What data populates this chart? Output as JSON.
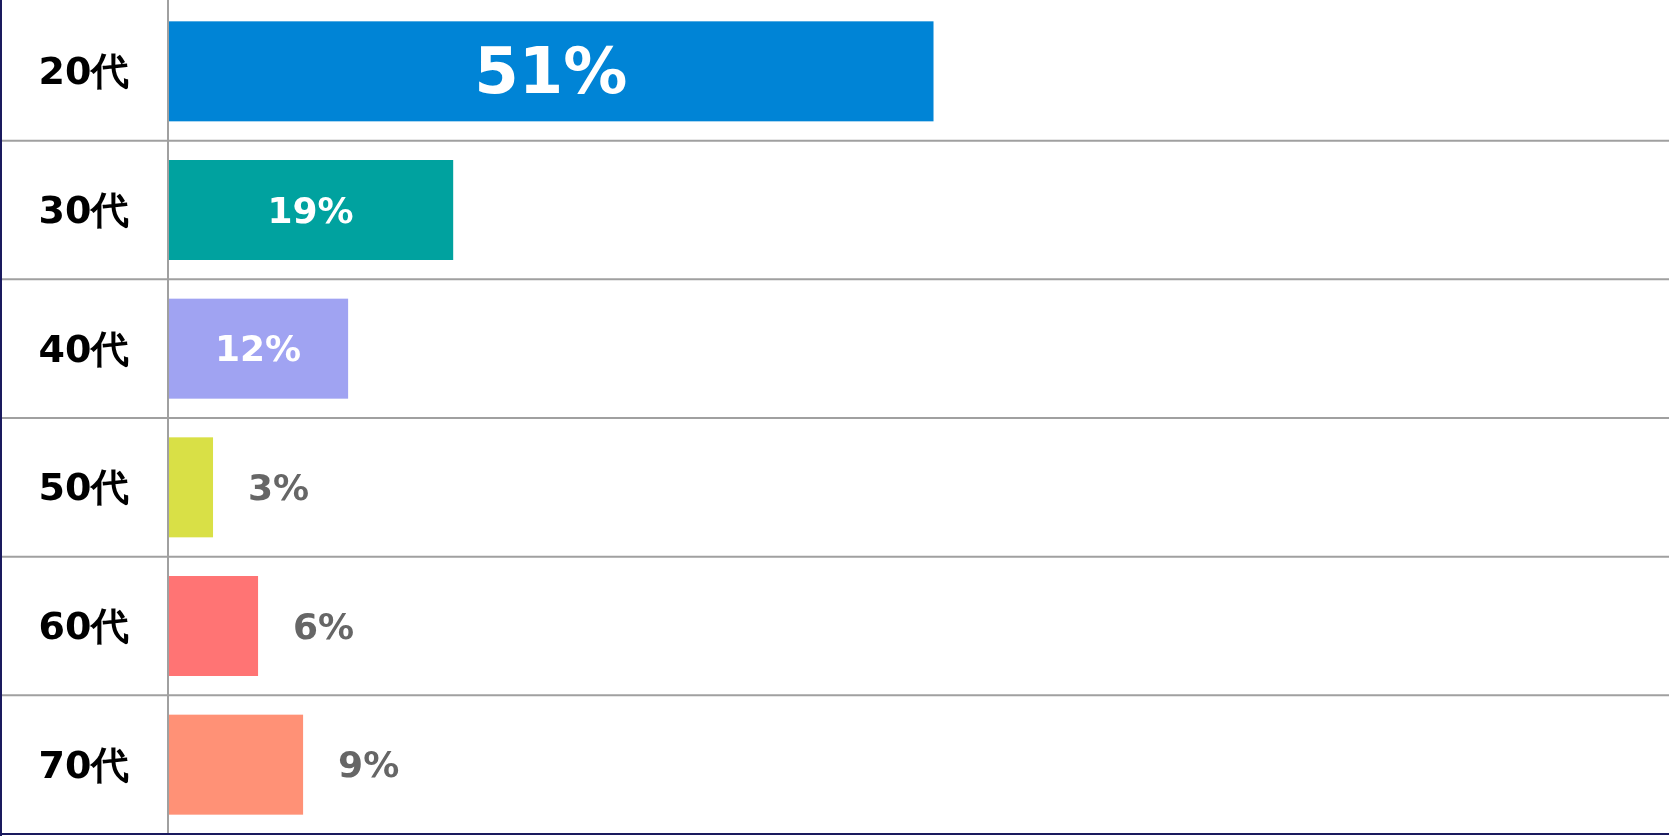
{
  "chart_data": {
    "type": "bar",
    "orientation": "horizontal",
    "categories": [
      "20代",
      "30代",
      "40代",
      "50代",
      "60代",
      "70代"
    ],
    "values": [
      51,
      19,
      12,
      3,
      6,
      9
    ],
    "colors": [
      "#0084d6",
      "#00a29f",
      "#a0a3f2",
      "#d9e046",
      "#ff7474",
      "#ff9176"
    ],
    "value_labels": [
      "51%",
      "19%",
      "12%",
      "3%",
      "6%",
      "9%"
    ],
    "xlim": [
      0,
      100
    ]
  }
}
